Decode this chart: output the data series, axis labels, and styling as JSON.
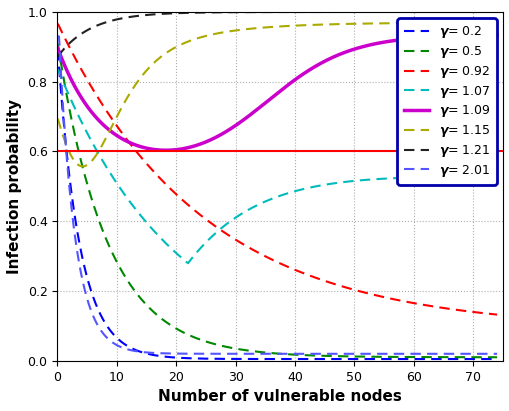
{
  "title": "",
  "xlabel": "Number of vulnerable nodes",
  "ylabel": "Infection probability",
  "xlim": [
    0,
    75
  ],
  "ylim": [
    0.0,
    1.0
  ],
  "xticks": [
    0,
    10,
    20,
    30,
    40,
    50,
    60,
    70
  ],
  "yticks": [
    0.0,
    0.2,
    0.4,
    0.6,
    0.8,
    1.0
  ],
  "horizontal_line_y": 0.6,
  "horizontal_line_color": "#ff0000",
  "curves": [
    {
      "gamma": 0.2,
      "label": "= 0.2",
      "color": "#0000ff",
      "linestyle": "dashed",
      "linewidth": 1.5
    },
    {
      "gamma": 0.5,
      "label": "= 0.5",
      "color": "#008800",
      "linestyle": "dashed",
      "linewidth": 1.5
    },
    {
      "gamma": 0.92,
      "label": "= 0.92",
      "color": "#ff0000",
      "linestyle": "dashed",
      "linewidth": 1.5
    },
    {
      "gamma": 1.07,
      "label": "= 1.07",
      "color": "#00bbbb",
      "linestyle": "dashed",
      "linewidth": 1.5
    },
    {
      "gamma": 1.09,
      "label": "= 1.09",
      "color": "#cc00cc",
      "linestyle": "solid",
      "linewidth": 2.5
    },
    {
      "gamma": 1.15,
      "label": "= 1.15",
      "color": "#aaaa00",
      "linestyle": "dashed",
      "linewidth": 1.5
    },
    {
      "gamma": 1.21,
      "label": "= 1.21",
      "color": "#222222",
      "linestyle": "dashed",
      "linewidth": 1.5
    },
    {
      "gamma": 2.01,
      "label": "= 2.01",
      "color": "#5555ff",
      "linestyle": "dashed",
      "linewidth": 1.5
    }
  ],
  "legend_edgecolor": "#0000aa",
  "legend_facecolor": "#ffffff",
  "background_color": "#ffffff",
  "grid_color": "#999999",
  "figsize": [
    5.1,
    4.11
  ],
  "dpi": 100
}
